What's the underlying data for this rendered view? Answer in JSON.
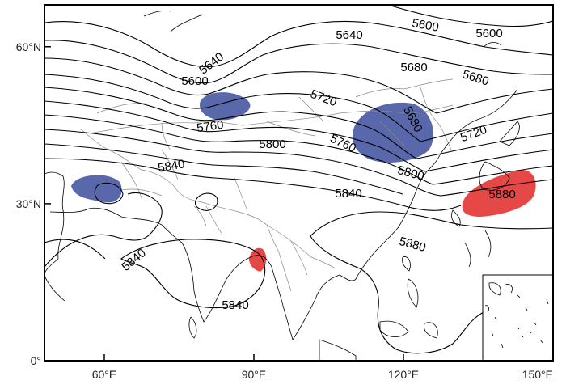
{
  "axes": {
    "x_ticks": [
      {
        "value": 60,
        "label": "60°E"
      },
      {
        "value": 90,
        "label": "90°E"
      },
      {
        "value": 120,
        "label": "120°E"
      },
      {
        "value": 150,
        "label": "150°E"
      }
    ],
    "y_ticks": [
      {
        "value": 60,
        "label": "60°N"
      },
      {
        "value": 30,
        "label": "30°N"
      },
      {
        "value": 0,
        "label": "0°"
      }
    ],
    "lon_range": [
      48,
      150
    ],
    "lat_range": [
      0,
      68
    ]
  },
  "contour_labels": [
    {
      "id": "l5600a",
      "text": "5600"
    },
    {
      "id": "l5600b",
      "text": "5600"
    },
    {
      "id": "l5600c",
      "text": "5600"
    },
    {
      "id": "l5640a",
      "text": "5640"
    },
    {
      "id": "l5640b",
      "text": "5640"
    },
    {
      "id": "l5680a",
      "text": "5680"
    },
    {
      "id": "l5680b",
      "text": "5680"
    },
    {
      "id": "l5680c",
      "text": "5680"
    },
    {
      "id": "l5720a",
      "text": "5720"
    },
    {
      "id": "l5720b",
      "text": "5720"
    },
    {
      "id": "l5760a",
      "text": "5760"
    },
    {
      "id": "l5760b",
      "text": "5760"
    },
    {
      "id": "l5800a",
      "text": "5800"
    },
    {
      "id": "l5800b",
      "text": "5800"
    },
    {
      "id": "l5840a",
      "text": "5840"
    },
    {
      "id": "l5840b",
      "text": "5840"
    },
    {
      "id": "l5840c",
      "text": "5840"
    },
    {
      "id": "l5840d",
      "text": "5840"
    },
    {
      "id": "l5880a",
      "text": "5880"
    },
    {
      "id": "l5880b",
      "text": "5880"
    }
  ],
  "shading": {
    "negative_color": "#3c4c9c",
    "positive_color": "#e02020"
  },
  "inset": "south-china-sea-inset"
}
